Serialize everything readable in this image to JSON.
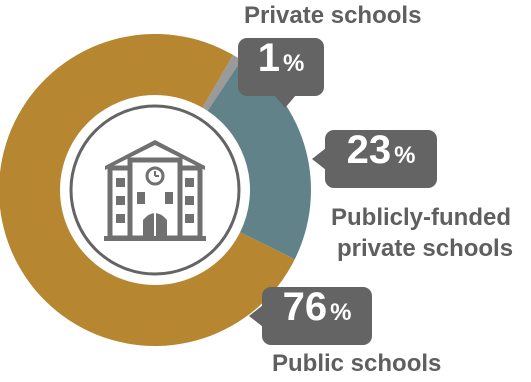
{
  "chart_data": {
    "type": "pie",
    "title": "",
    "donut": true,
    "total": 100,
    "segments": [
      {
        "name": "Private schools",
        "value": 1,
        "color": "#9a9a9a"
      },
      {
        "name": "Publicly-funded private schools",
        "value": 23,
        "color": "#628289"
      },
      {
        "name": "Public schools",
        "value": 76,
        "color": "#b68630"
      }
    ],
    "center_icon": "school-building-icon",
    "unit": "%"
  },
  "labels": {
    "private": {
      "value": "1",
      "unit": "%",
      "line1": "Private schools"
    },
    "publicly_funded": {
      "value": "23",
      "unit": "%",
      "line1": "Publicly-funded",
      "line2": "private schools"
    },
    "public": {
      "value": "76",
      "unit": "%",
      "line1": "Public schools"
    }
  },
  "colors": {
    "callout_bg": "#646464",
    "label_text": "#5f5f5f",
    "icon": "#707070"
  }
}
